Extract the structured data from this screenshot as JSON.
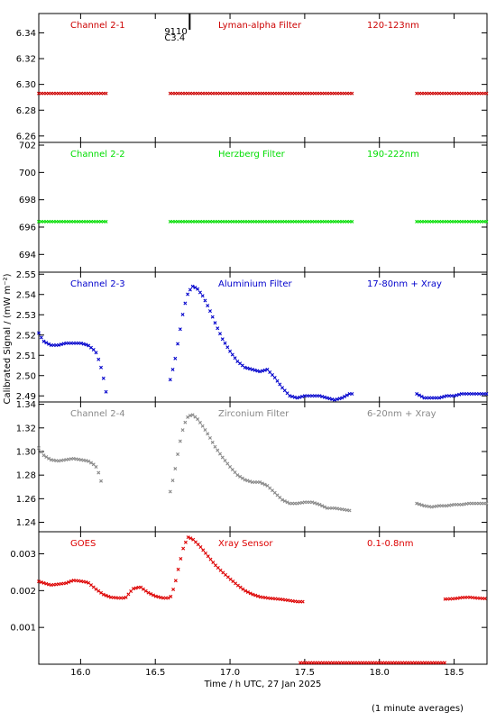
{
  "chart_data": {
    "type": "scatter",
    "xlabel": "Time / h UTC, 27 Jan 2025",
    "ylabel": "Calibrated Signal / (mW m⁻²)",
    "footnote": "(1 minute averages)",
    "xlim": [
      15.72,
      18.72
    ],
    "x_ticks": [
      16.0,
      16.5,
      17.0,
      17.5,
      18.0,
      18.5
    ],
    "x_tick_labels": [
      "16.0",
      "16.5",
      "17.0",
      "17.5",
      "18.0",
      "18.5"
    ],
    "flare_marker": {
      "x": 16.73,
      "labels": [
        "9110",
        "C3.4"
      ]
    },
    "panels": [
      {
        "label": "Channel 2-1",
        "filter": "Lyman-alpha Filter",
        "band": "120-123nm",
        "color": "#cc0000",
        "ylim": [
          6.255,
          6.355
        ],
        "y_ticks": [
          6.26,
          6.28,
          6.3,
          6.32,
          6.34
        ],
        "y_tick_labels": [
          "6.26",
          "6.28",
          "6.30",
          "6.32",
          "6.34"
        ],
        "segments": [
          {
            "x": [
              15.72,
              16.17
            ],
            "y": [
              6.293,
              6.293
            ]
          },
          {
            "x": [
              16.6,
              17.82
            ],
            "y": [
              6.293,
              6.293
            ]
          },
          {
            "x": [
              18.25,
              18.72
            ],
            "y": [
              6.293,
              6.293
            ]
          }
        ]
      },
      {
        "label": "Channel 2-2",
        "filter": "Herzberg Filter",
        "band": "190-222nm",
        "color": "#00dd00",
        "ylim": [
          692.7,
          702.2
        ],
        "y_ticks": [
          694,
          696,
          698,
          700,
          702
        ],
        "y_tick_labels": [
          "694",
          "696",
          "698",
          "700",
          "702"
        ],
        "segments": [
          {
            "x": [
              15.72,
              16.17
            ],
            "y": [
              696.4,
              696.4
            ]
          },
          {
            "x": [
              16.6,
              17.82
            ],
            "y": [
              696.4,
              696.4
            ]
          },
          {
            "x": [
              18.25,
              18.72
            ],
            "y": [
              696.4,
              696.4
            ]
          }
        ]
      },
      {
        "label": "Channel 2-3",
        "filter": "Aluminium Filter",
        "band": "17-80nm + Xray",
        "color": "#0000cc",
        "ylim": [
          2.487,
          2.551
        ],
        "y_ticks": [
          2.49,
          2.5,
          2.51,
          2.52,
          2.53,
          2.54,
          2.55
        ],
        "y_tick_labels": [
          "2.49",
          "2.50",
          "2.51",
          "2.52",
          "2.53",
          "2.54",
          "2.55"
        ],
        "segments": [
          {
            "x": [
              15.72,
              15.75,
              15.8,
              15.85,
              15.9,
              15.95,
              16.0,
              16.05,
              16.1,
              16.13,
              16.15,
              16.17
            ],
            "y": [
              2.521,
              2.517,
              2.515,
              2.515,
              2.516,
              2.516,
              2.516,
              2.515,
              2.512,
              2.506,
              2.5,
              2.492
            ]
          },
          {
            "x": [
              16.6,
              16.63,
              16.66,
              16.69,
              16.72,
              16.75,
              16.78,
              16.82,
              16.86,
              16.9,
              16.95,
              17.0,
              17.05,
              17.1,
              17.15,
              17.2,
              17.25,
              17.3,
              17.35,
              17.4,
              17.45,
              17.5,
              17.55,
              17.6,
              17.65,
              17.7,
              17.75,
              17.8,
              17.82
            ],
            "y": [
              2.498,
              2.507,
              2.52,
              2.533,
              2.541,
              2.544,
              2.543,
              2.539,
              2.533,
              2.526,
              2.518,
              2.512,
              2.507,
              2.504,
              2.503,
              2.502,
              2.503,
              2.499,
              2.494,
              2.49,
              2.489,
              2.49,
              2.49,
              2.49,
              2.489,
              2.488,
              2.489,
              2.491,
              2.491
            ]
          },
          {
            "x": [
              18.25,
              18.3,
              18.35,
              18.4,
              18.45,
              18.5,
              18.55,
              18.6,
              18.65,
              18.72
            ],
            "y": [
              2.491,
              2.489,
              2.489,
              2.489,
              2.49,
              2.49,
              2.491,
              2.491,
              2.491,
              2.491
            ]
          }
        ]
      },
      {
        "label": "Channel 2-4",
        "filter": "Zirconium Filter",
        "band": "6-20nm + Xray",
        "color": "#888888",
        "ylim": [
          1.232,
          1.342
        ],
        "y_ticks": [
          1.24,
          1.26,
          1.28,
          1.3,
          1.32,
          1.34
        ],
        "y_tick_labels": [
          "1.24",
          "1.26",
          "1.28",
          "1.30",
          "1.32",
          "1.34"
        ],
        "segments": [
          {
            "x": [
              15.72,
              15.75,
              15.8,
              15.85,
              15.9,
              15.95,
              16.0,
              16.05,
              16.1,
              16.13,
              16.15
            ],
            "y": [
              1.303,
              1.297,
              1.293,
              1.292,
              1.293,
              1.294,
              1.293,
              1.292,
              1.288,
              1.279,
              1.267
            ]
          },
          {
            "x": [
              16.6,
              16.63,
              16.66,
              16.69,
              16.72,
              16.75,
              16.78,
              16.82,
              16.86,
              16.9,
              16.95,
              17.0,
              17.05,
              17.1,
              17.15,
              17.2,
              17.25,
              17.3,
              17.35,
              17.4,
              17.45,
              17.5,
              17.55,
              17.6,
              17.65,
              17.7,
              17.75,
              17.8
            ],
            "y": [
              1.266,
              1.283,
              1.305,
              1.322,
              1.33,
              1.331,
              1.328,
              1.321,
              1.313,
              1.304,
              1.295,
              1.287,
              1.28,
              1.276,
              1.274,
              1.274,
              1.271,
              1.265,
              1.259,
              1.256,
              1.256,
              1.257,
              1.257,
              1.255,
              1.252,
              1.252,
              1.251,
              1.25
            ]
          },
          {
            "x": [
              18.25,
              18.3,
              18.35,
              18.4,
              18.45,
              18.5,
              18.55,
              18.6,
              18.65,
              18.72
            ],
            "y": [
              1.256,
              1.254,
              1.253,
              1.254,
              1.254,
              1.255,
              1.255,
              1.256,
              1.256,
              1.256
            ]
          }
        ]
      },
      {
        "label": "GOES",
        "filter": "Xray Sensor",
        "band": "0.1-0.8nm",
        "color": "#dd0000",
        "ylim": [
          0.0,
          0.0036
        ],
        "y_ticks": [
          0.001,
          0.002,
          0.003
        ],
        "y_tick_labels": [
          "0.001",
          "0.002",
          "0.003"
        ],
        "segments": [
          {
            "x": [
              15.72,
              15.8,
              15.9,
              15.95,
              16.0,
              16.05,
              16.1,
              16.15,
              16.2,
              16.25,
              16.3,
              16.35,
              16.4,
              16.45,
              16.5,
              16.55,
              16.6,
              16.63,
              16.66,
              16.69,
              16.72,
              16.75,
              16.8,
              16.85,
              16.9,
              16.95,
              17.0,
              17.05,
              17.1,
              17.15,
              17.2,
              17.25,
              17.3,
              17.35,
              17.4,
              17.45,
              17.5
            ],
            "y": [
              0.00225,
              0.00215,
              0.0022,
              0.00228,
              0.00226,
              0.00222,
              0.00205,
              0.0019,
              0.00182,
              0.0018,
              0.0018,
              0.00205,
              0.0021,
              0.00195,
              0.00185,
              0.0018,
              0.0018,
              0.00215,
              0.0027,
              0.0032,
              0.00345,
              0.0034,
              0.0032,
              0.00295,
              0.0027,
              0.0025,
              0.00232,
              0.00215,
              0.002,
              0.0019,
              0.00183,
              0.0018,
              0.00178,
              0.00176,
              0.00173,
              0.0017,
              0.0017
            ]
          },
          {
            "x": [
              17.47,
              17.6,
              17.8,
              18.0,
              18.2,
              18.44
            ],
            "y": [
              4e-05,
              4e-05,
              4e-05,
              4e-05,
              4e-05,
              4e-05
            ]
          },
          {
            "x": [
              18.44,
              18.5,
              18.55,
              18.6,
              18.65,
              18.72
            ],
            "y": [
              0.00177,
              0.00178,
              0.00181,
              0.00182,
              0.0018,
              0.00178
            ]
          }
        ]
      }
    ]
  }
}
